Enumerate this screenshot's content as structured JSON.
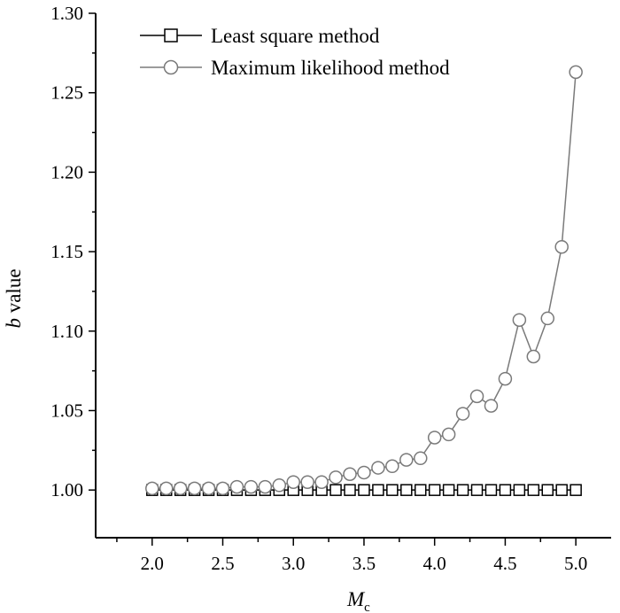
{
  "chart_data": {
    "type": "line",
    "xlabel": "M",
    "xlabel_sub": "c",
    "ylabel_italic": "b",
    "ylabel_rest": " value",
    "xlim": [
      1.6,
      5.25
    ],
    "ylim": [
      0.97,
      1.3
    ],
    "xticks": [
      2.0,
      2.5,
      3.0,
      3.5,
      4.0,
      4.5,
      5.0
    ],
    "xtick_labels": [
      "2.0",
      "2.5",
      "3.0",
      "3.5",
      "4.0",
      "4.5",
      "5.0"
    ],
    "yticks": [
      1.0,
      1.05,
      1.1,
      1.15,
      1.2,
      1.25,
      1.3
    ],
    "ytick_labels": [
      "1.00",
      "1.05",
      "1.10",
      "1.15",
      "1.20",
      "1.25",
      "1.30"
    ],
    "grid": false,
    "legend_position": "top-left",
    "series": [
      {
        "name": "Least square method",
        "marker": "square",
        "color": "#000000",
        "x": [
          2.0,
          2.1,
          2.2,
          2.3,
          2.4,
          2.5,
          2.6,
          2.7,
          2.8,
          2.9,
          3.0,
          3.1,
          3.2,
          3.3,
          3.4,
          3.5,
          3.6,
          3.7,
          3.8,
          3.9,
          4.0,
          4.1,
          4.2,
          4.3,
          4.4,
          4.5,
          4.6,
          4.7,
          4.8,
          4.9,
          5.0
        ],
        "y": [
          1.0,
          1.0,
          1.0,
          1.0,
          1.0,
          1.0,
          1.0,
          1.0,
          1.0,
          1.0,
          1.0,
          1.0,
          1.0,
          1.0,
          1.0,
          1.0,
          1.0,
          1.0,
          1.0,
          1.0,
          1.0,
          1.0,
          1.0,
          1.0,
          1.0,
          1.0,
          1.0,
          1.0,
          1.0,
          1.0,
          1.0
        ]
      },
      {
        "name": "Maximum likelihood method",
        "marker": "circle",
        "color": "#7a7a7a",
        "x": [
          2.0,
          2.1,
          2.2,
          2.3,
          2.4,
          2.5,
          2.6,
          2.7,
          2.8,
          2.9,
          3.0,
          3.1,
          3.2,
          3.3,
          3.4,
          3.5,
          3.6,
          3.7,
          3.8,
          3.9,
          4.0,
          4.1,
          4.2,
          4.3,
          4.4,
          4.5,
          4.6,
          4.7,
          4.8,
          4.9,
          5.0
        ],
        "y": [
          1.001,
          1.001,
          1.001,
          1.001,
          1.001,
          1.001,
          1.002,
          1.002,
          1.002,
          1.003,
          1.005,
          1.005,
          1.005,
          1.008,
          1.01,
          1.011,
          1.014,
          1.015,
          1.019,
          1.02,
          1.033,
          1.035,
          1.048,
          1.059,
          1.053,
          1.07,
          1.107,
          1.084,
          1.108,
          1.153,
          1.263
        ]
      }
    ]
  }
}
